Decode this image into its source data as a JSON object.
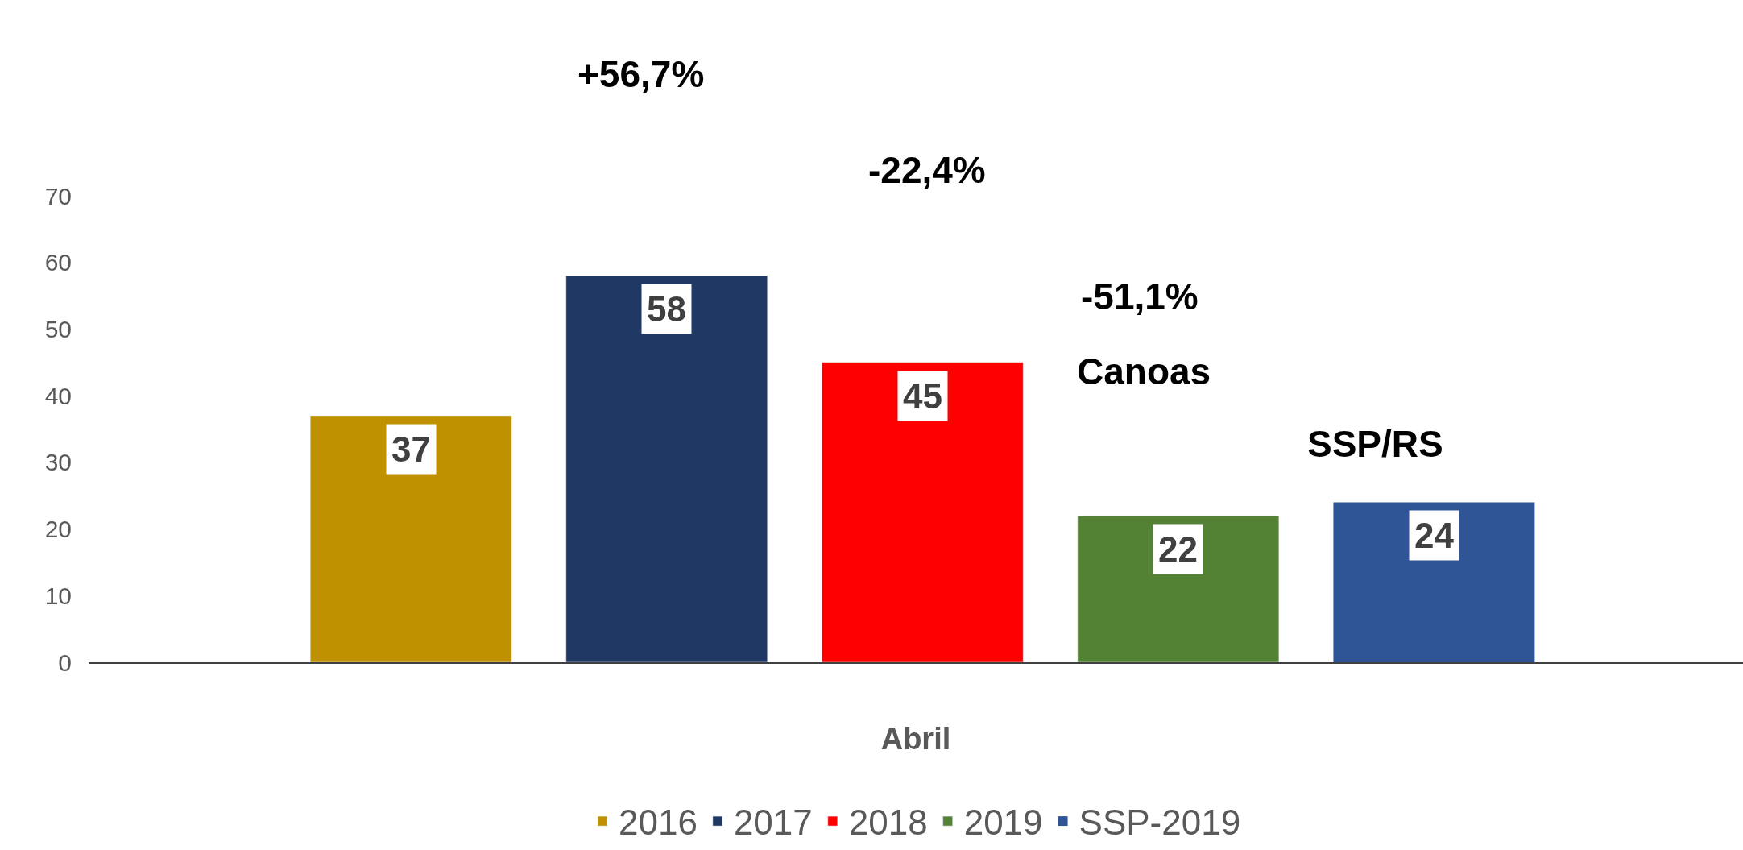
{
  "chart_data": {
    "type": "bar",
    "categories": [
      "Abril"
    ],
    "series": [
      {
        "name": "2016",
        "color": "#bf9000",
        "values": [
          37
        ]
      },
      {
        "name": "2017",
        "color": "#203864",
        "values": [
          58
        ]
      },
      {
        "name": "2018",
        "color": "#ff0000",
        "values": [
          45
        ]
      },
      {
        "name": "2019",
        "color": "#548235",
        "values": [
          22
        ]
      },
      {
        "name": "SSP-2019",
        "color": "#2f5597",
        "values": [
          24
        ]
      }
    ],
    "annotations": [
      "+56,7%",
      "-22,4%",
      "-51,1%",
      "Canoas",
      "SSP/RS"
    ],
    "data_labels": true,
    "ylim": [
      0,
      70
    ],
    "yticks": [
      0,
      10,
      20,
      30,
      40,
      50,
      60,
      70
    ],
    "grid": false,
    "legend": "bottom"
  }
}
